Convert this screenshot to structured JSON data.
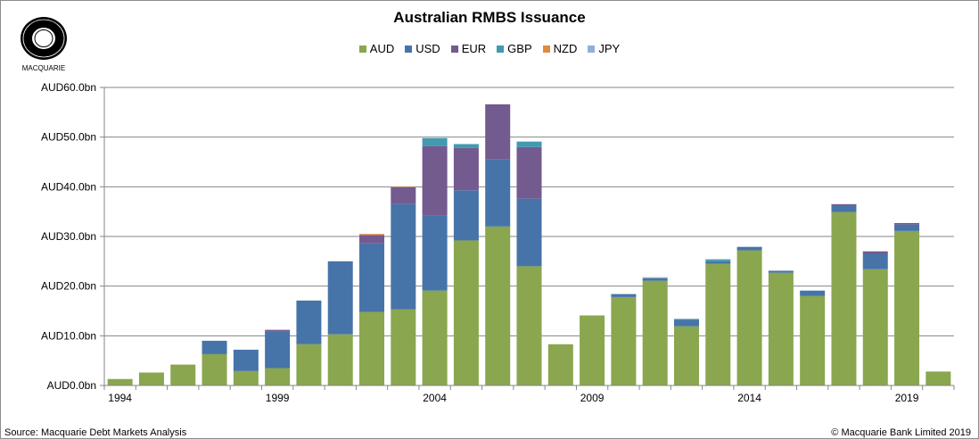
{
  "logo": {
    "text": "MACQUARIE"
  },
  "footer": {
    "source": "Source: Macquarie Debt Markets Analysis",
    "copyright": "© Macquarie Bank Limited 2019"
  },
  "chart_data": {
    "type": "bar",
    "stacked": true,
    "title": "Australian RMBS Issuance",
    "xlabel": "",
    "ylabel": "",
    "ylim": [
      0,
      60
    ],
    "yticks": [
      0,
      10,
      20,
      30,
      40,
      50,
      60
    ],
    "ytick_labels": [
      "AUD0.0bn",
      "AUD10.0bn",
      "AUD20.0bn",
      "AUD30.0bn",
      "AUD40.0bn",
      "AUD50.0bn",
      "AUD60.0bn"
    ],
    "grid": "horizontal",
    "legend_position": "top",
    "categories": [
      1994,
      1995,
      1996,
      1997,
      1998,
      1999,
      2000,
      2001,
      2002,
      2003,
      2004,
      2005,
      2006,
      2007,
      2008,
      2009,
      2010,
      2011,
      2012,
      2013,
      2014,
      2015,
      2016,
      2017,
      2018,
      2019,
      2020
    ],
    "xtick_labels": [
      "1994",
      "1999",
      "2004",
      "2009",
      "2014",
      "2019"
    ],
    "series": [
      {
        "name": "AUD",
        "color": "#8aa64e",
        "values": [
          1.3,
          2.6,
          4.2,
          6.3,
          2.9,
          3.5,
          8.3,
          10.3,
          14.8,
          15.3,
          19.1,
          29.2,
          32.0,
          24.0,
          8.3,
          14.1,
          17.8,
          21.1,
          11.9,
          24.5,
          27.2,
          22.7,
          18.0,
          34.9,
          23.4,
          31.1,
          2.8
        ]
      },
      {
        "name": "USD",
        "color": "#4674a8",
        "values": [
          0,
          0,
          0,
          2.7,
          4.3,
          7.3,
          8.8,
          14.7,
          13.8,
          21.2,
          15.1,
          10.1,
          13.5,
          13.6,
          0,
          0,
          0.6,
          0.5,
          1.3,
          0.5,
          0.7,
          0.4,
          1.1,
          1.3,
          3.1,
          1.3,
          0
        ]
      },
      {
        "name": "EUR",
        "color": "#735a8f",
        "values": [
          0,
          0,
          0,
          0,
          0,
          0.4,
          0,
          0,
          1.7,
          3.4,
          14.0,
          8.5,
          11.1,
          10.4,
          0,
          0,
          0,
          0,
          0,
          0,
          0,
          0,
          0,
          0.3,
          0.5,
          0.3,
          0
        ]
      },
      {
        "name": "GBP",
        "color": "#4399af",
        "values": [
          0,
          0,
          0,
          0,
          0,
          0,
          0,
          0,
          0,
          0,
          1.6,
          0.8,
          0,
          1.1,
          0,
          0,
          0,
          0,
          0.2,
          0.4,
          0,
          0,
          0,
          0,
          0,
          0,
          0
        ]
      },
      {
        "name": "NZD",
        "color": "#e08a3c",
        "values": [
          0,
          0,
          0,
          0,
          0,
          0,
          0,
          0,
          0.2,
          0.1,
          0,
          0,
          0,
          0,
          0,
          0,
          0,
          0,
          0,
          0,
          0,
          0,
          0,
          0,
          0,
          0,
          0
        ]
      },
      {
        "name": "JPY",
        "color": "#93aeda",
        "values": [
          0,
          0,
          0,
          0,
          0,
          0,
          0,
          0,
          0,
          0,
          0,
          0,
          0,
          0,
          0,
          0,
          0,
          0.2,
          0,
          0,
          0,
          0,
          0,
          0,
          0,
          0,
          0
        ]
      }
    ]
  }
}
